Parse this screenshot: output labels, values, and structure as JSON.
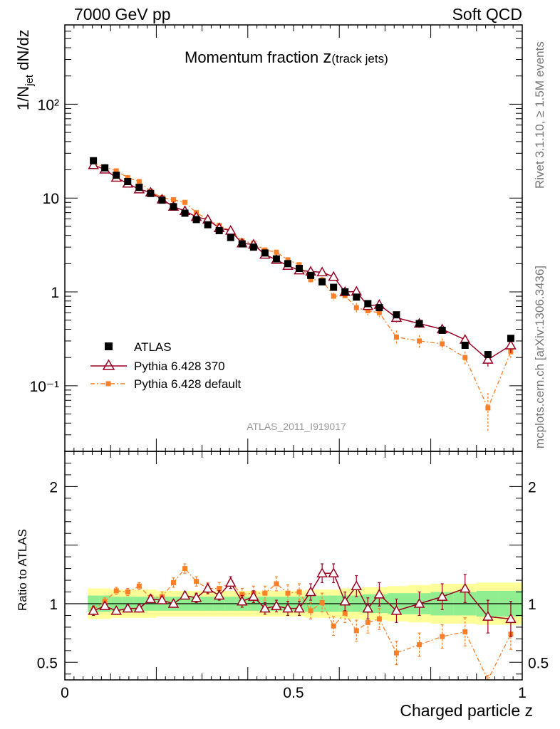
{
  "header": {
    "left": "7000 GeV pp",
    "right": "Soft QCD"
  },
  "side": {
    "rivet": "Rivet 3.1.10, ≥ 1.5M events",
    "mcplots": "mcplots.cern.ch [arXiv:1306.3436]"
  },
  "colors": {
    "atlas": "#000000",
    "pythia370": "#990022",
    "pythia_default": "#ff7f27",
    "band_inner": "#90ee90",
    "band_outer": "#ffff99",
    "watermark": "#999999"
  },
  "chart_data": [
    {
      "type": "scatter",
      "title_main": "Momentum fraction ",
      "title_z": "z",
      "title_sub": "(track jets)",
      "ylabel_base": "1/N",
      "ylabel_sub": "jet",
      "ylabel_tail": " dN/dz",
      "watermark": "ATLAS_2011_I919017",
      "xlim": [
        0,
        1
      ],
      "ylim": [
        0.02,
        700
      ],
      "yscale": "log",
      "ytick_labels": [
        "10⁻¹",
        "1",
        "10",
        "10²"
      ],
      "ytick_values": [
        0.1,
        1,
        10,
        100
      ],
      "x": [
        0.0625,
        0.0875,
        0.1125,
        0.1375,
        0.1625,
        0.1875,
        0.2125,
        0.2375,
        0.2625,
        0.2875,
        0.3125,
        0.3375,
        0.3625,
        0.3875,
        0.4125,
        0.4375,
        0.4625,
        0.4875,
        0.5125,
        0.5375,
        0.5625,
        0.5875,
        0.6125,
        0.6375,
        0.6625,
        0.6875,
        0.725,
        0.775,
        0.825,
        0.875,
        0.925,
        0.975
      ],
      "series": [
        {
          "name": "ATLAS",
          "values": [
            25,
            21,
            17.5,
            15,
            13,
            11.2,
            9.5,
            8.1,
            6.9,
            5.9,
            5.2,
            4.5,
            3.8,
            3.25,
            3.0,
            2.6,
            2.25,
            2.0,
            1.78,
            1.5,
            1.28,
            1.12,
            1.0,
            0.88,
            0.75,
            0.68,
            0.57,
            0.46,
            0.39,
            0.27,
            0.215,
            0.32
          ]
        },
        {
          "name": "Pythia 6.428 370",
          "values": [
            22.5,
            20.2,
            16.5,
            14.3,
            12.4,
            11.5,
            9.7,
            8.1,
            7.3,
            6.3,
            5.9,
            4.8,
            4.5,
            3.3,
            3.2,
            2.5,
            2.2,
            1.9,
            1.7,
            1.65,
            1.62,
            1.45,
            1.0,
            1.01,
            0.71,
            0.73,
            0.53,
            0.46,
            0.4,
            0.31,
            0.19,
            0.27
          ]
        },
        {
          "name": "Pythia 6.428 default",
          "values": [
            23.5,
            21.5,
            19.5,
            16.5,
            15,
            11.8,
            10.1,
            9.6,
            9.0,
            7.0,
            5.9,
            5.1,
            4.5,
            3.5,
            3.3,
            2.8,
            2.65,
            2.2,
            1.95,
            1.35,
            1.34,
            0.9,
            0.91,
            0.68,
            0.63,
            0.6,
            0.33,
            0.3,
            0.28,
            0.2,
            0.058,
            0.23
          ]
        }
      ],
      "legend": [
        "ATLAS",
        "Pythia 6.428 370",
        "Pythia 6.428 default"
      ]
    },
    {
      "type": "scatter",
      "ylabel": "Ratio to ATLAS",
      "xlabel": "Charged particle z",
      "xlim": [
        0,
        1
      ],
      "ylim": [
        0.35,
        2.3
      ],
      "xtick_labels": [
        "0",
        "0.5",
        "1"
      ],
      "xtick_values": [
        0,
        0.5,
        1
      ],
      "ytick_labels": [
        "0.5",
        "1",
        "2"
      ],
      "ytick_values": [
        0.5,
        1,
        2
      ],
      "x": [
        0.0625,
        0.0875,
        0.1125,
        0.1375,
        0.1625,
        0.1875,
        0.2125,
        0.2375,
        0.2625,
        0.2875,
        0.3125,
        0.3375,
        0.3625,
        0.3875,
        0.4125,
        0.4375,
        0.4625,
        0.4875,
        0.5125,
        0.5375,
        0.5625,
        0.5875,
        0.6125,
        0.6375,
        0.6625,
        0.6875,
        0.725,
        0.775,
        0.825,
        0.875,
        0.925,
        0.975
      ],
      "band_inner": [
        0.07,
        0.07,
        0.06,
        0.06,
        0.06,
        0.06,
        0.06,
        0.06,
        0.06,
        0.06,
        0.06,
        0.06,
        0.06,
        0.06,
        0.06,
        0.06,
        0.06,
        0.06,
        0.06,
        0.07,
        0.07,
        0.07,
        0.07,
        0.07,
        0.08,
        0.08,
        0.09,
        0.09,
        0.1,
        0.1,
        0.11,
        0.11
      ],
      "band_outer": [
        0.13,
        0.13,
        0.12,
        0.12,
        0.12,
        0.12,
        0.11,
        0.11,
        0.11,
        0.11,
        0.11,
        0.11,
        0.11,
        0.11,
        0.11,
        0.11,
        0.11,
        0.11,
        0.11,
        0.12,
        0.12,
        0.12,
        0.13,
        0.13,
        0.14,
        0.14,
        0.15,
        0.16,
        0.17,
        0.17,
        0.18,
        0.18
      ],
      "series": [
        {
          "name": "Pythia 6.428 370",
          "values": [
            0.94,
            0.98,
            0.94,
            0.96,
            0.96,
            1.04,
            1.03,
            1.0,
            1.07,
            1.05,
            1.13,
            1.07,
            1.18,
            1.02,
            1.06,
            0.96,
            0.98,
            0.96,
            0.96,
            1.1,
            1.26,
            1.26,
            1.02,
            1.15,
            0.96,
            1.08,
            0.94,
            1.0,
            1.06,
            1.13,
            0.89,
            0.87
          ],
          "errors": [
            0.04,
            0.03,
            0.03,
            0.03,
            0.03,
            0.03,
            0.03,
            0.03,
            0.03,
            0.04,
            0.04,
            0.04,
            0.05,
            0.05,
            0.05,
            0.05,
            0.05,
            0.06,
            0.06,
            0.07,
            0.08,
            0.08,
            0.08,
            0.09,
            0.09,
            0.1,
            0.1,
            0.1,
            0.11,
            0.12,
            0.14,
            0.15
          ]
        },
        {
          "name": "Pythia 6.428 default",
          "values": [
            0.95,
            1.02,
            1.11,
            1.1,
            1.15,
            1.05,
            1.06,
            1.18,
            1.3,
            1.19,
            1.13,
            1.13,
            1.18,
            1.08,
            1.09,
            1.09,
            1.17,
            1.09,
            1.1,
            0.94,
            1.01,
            0.81,
            0.92,
            0.77,
            0.84,
            0.87,
            0.58,
            0.65,
            0.72,
            0.76,
            0.27,
            0.74
          ],
          "errors": [
            0.03,
            0.03,
            0.03,
            0.03,
            0.03,
            0.03,
            0.04,
            0.04,
            0.04,
            0.04,
            0.05,
            0.05,
            0.05,
            0.05,
            0.06,
            0.06,
            0.06,
            0.07,
            0.07,
            0.07,
            0.08,
            0.08,
            0.08,
            0.09,
            0.09,
            0.09,
            0.1,
            0.1,
            0.1,
            0.12,
            0.12,
            0.13
          ]
        }
      ]
    }
  ]
}
